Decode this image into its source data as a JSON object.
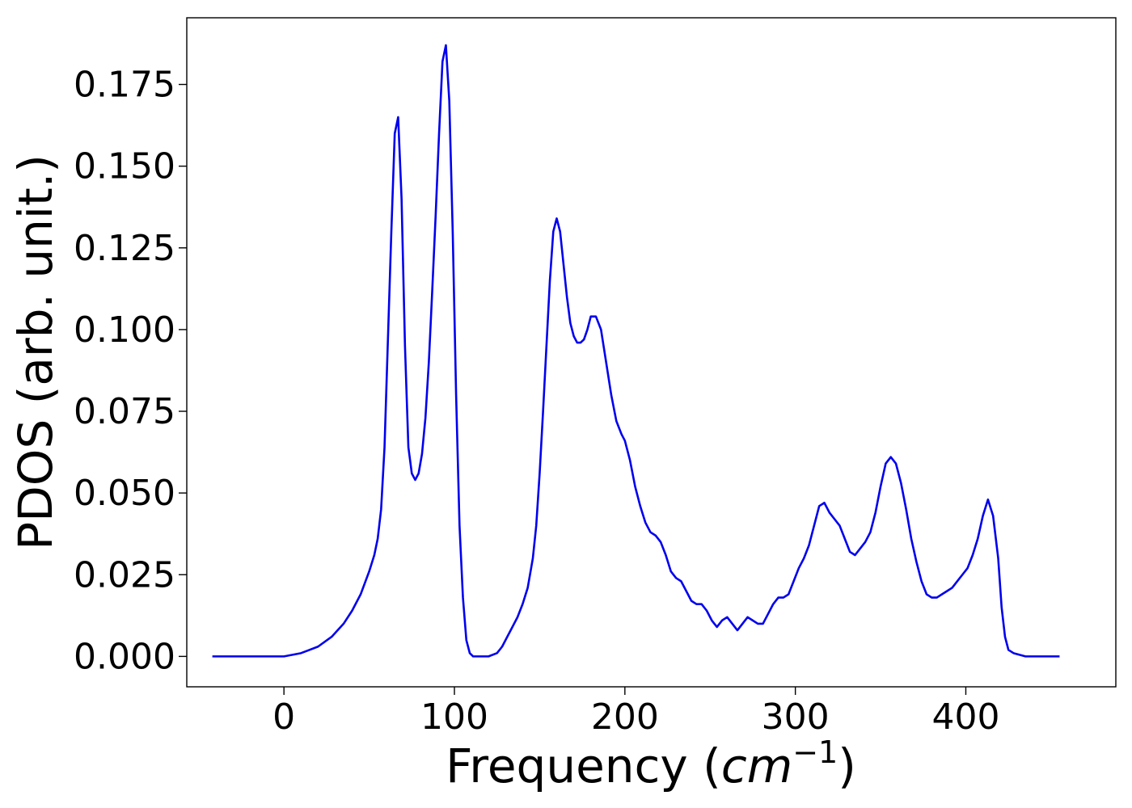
{
  "chart_data": {
    "type": "line",
    "title": "",
    "xlabel": "Frequency (",
    "xlabel_math": "cm",
    "xlabel_sup": "−1",
    "xlabel_end": ")",
    "ylabel": "PDOS (arb. unit.)",
    "xlim": [
      -57,
      488
    ],
    "ylim": [
      -0.0093,
      0.1954
    ],
    "xticks": [
      0,
      100,
      200,
      300,
      400
    ],
    "xtick_labels": [
      "0",
      "100",
      "200",
      "300",
      "400"
    ],
    "yticks": [
      0.0,
      0.025,
      0.05,
      0.075,
      0.1,
      0.125,
      0.15,
      0.175
    ],
    "ytick_labels": [
      "0.000",
      "0.025",
      "0.050",
      "0.075",
      "0.100",
      "0.125",
      "0.150",
      "0.175"
    ],
    "grid": false,
    "colors": {
      "line": "#0000ee",
      "axes": "#000000"
    },
    "series": [
      {
        "x": [
          -42,
          -20,
          0,
          10,
          20,
          28,
          35,
          40,
          45,
          50,
          53,
          55,
          57,
          59,
          61,
          63,
          65,
          67,
          69,
          71,
          73,
          75,
          77,
          79,
          81,
          83,
          85,
          87,
          89,
          91,
          93,
          95,
          97,
          99,
          101,
          103,
          105,
          107,
          109,
          111,
          113,
          115,
          120,
          125,
          128,
          131,
          134,
          137,
          140,
          143,
          146,
          148,
          150,
          152,
          154,
          156,
          158,
          160,
          162,
          164,
          166,
          168,
          170,
          172,
          174,
          176,
          178,
          180,
          183,
          186,
          189,
          192,
          195,
          198,
          200,
          203,
          206,
          209,
          212,
          215,
          218,
          221,
          224,
          227,
          230,
          233,
          236,
          239,
          242,
          245,
          248,
          251,
          254,
          257,
          260,
          263,
          266,
          269,
          272,
          275,
          278,
          281,
          284,
          287,
          290,
          293,
          296,
          299,
          302,
          305,
          308,
          311,
          314,
          317,
          320,
          323,
          326,
          329,
          332,
          335,
          338,
          341,
          344,
          347,
          350,
          353,
          356,
          359,
          362,
          365,
          368,
          371,
          374,
          377,
          380,
          383,
          386,
          389,
          392,
          395,
          398,
          401,
          404,
          407,
          410,
          413,
          416,
          419,
          421,
          423,
          425,
          428,
          435,
          450,
          455
        ],
        "y": [
          0.0,
          0.0,
          0.0,
          0.001,
          0.003,
          0.006,
          0.01,
          0.014,
          0.019,
          0.026,
          0.031,
          0.036,
          0.045,
          0.064,
          0.097,
          0.13,
          0.16,
          0.165,
          0.14,
          0.095,
          0.064,
          0.056,
          0.054,
          0.056,
          0.062,
          0.073,
          0.09,
          0.112,
          0.135,
          0.16,
          0.182,
          0.187,
          0.17,
          0.13,
          0.08,
          0.04,
          0.018,
          0.005,
          0.001,
          0.0,
          0.0,
          0.0,
          0.0,
          0.001,
          0.003,
          0.006,
          0.009,
          0.012,
          0.016,
          0.021,
          0.03,
          0.04,
          0.056,
          0.075,
          0.095,
          0.115,
          0.13,
          0.134,
          0.13,
          0.12,
          0.11,
          0.102,
          0.098,
          0.096,
          0.096,
          0.097,
          0.1,
          0.104,
          0.104,
          0.1,
          0.09,
          0.08,
          0.072,
          0.068,
          0.066,
          0.06,
          0.052,
          0.046,
          0.041,
          0.038,
          0.037,
          0.035,
          0.031,
          0.026,
          0.024,
          0.023,
          0.02,
          0.017,
          0.016,
          0.016,
          0.014,
          0.011,
          0.009,
          0.011,
          0.012,
          0.01,
          0.008,
          0.01,
          0.012,
          0.011,
          0.01,
          0.01,
          0.013,
          0.016,
          0.018,
          0.018,
          0.019,
          0.023,
          0.027,
          0.03,
          0.034,
          0.04,
          0.046,
          0.047,
          0.044,
          0.042,
          0.04,
          0.036,
          0.032,
          0.031,
          0.033,
          0.035,
          0.038,
          0.044,
          0.052,
          0.059,
          0.061,
          0.059,
          0.053,
          0.045,
          0.036,
          0.029,
          0.023,
          0.019,
          0.018,
          0.018,
          0.019,
          0.02,
          0.021,
          0.023,
          0.025,
          0.027,
          0.031,
          0.036,
          0.043,
          0.048,
          0.043,
          0.03,
          0.015,
          0.006,
          0.002,
          0.001,
          0.0,
          0.0,
          0.0
        ]
      }
    ]
  }
}
